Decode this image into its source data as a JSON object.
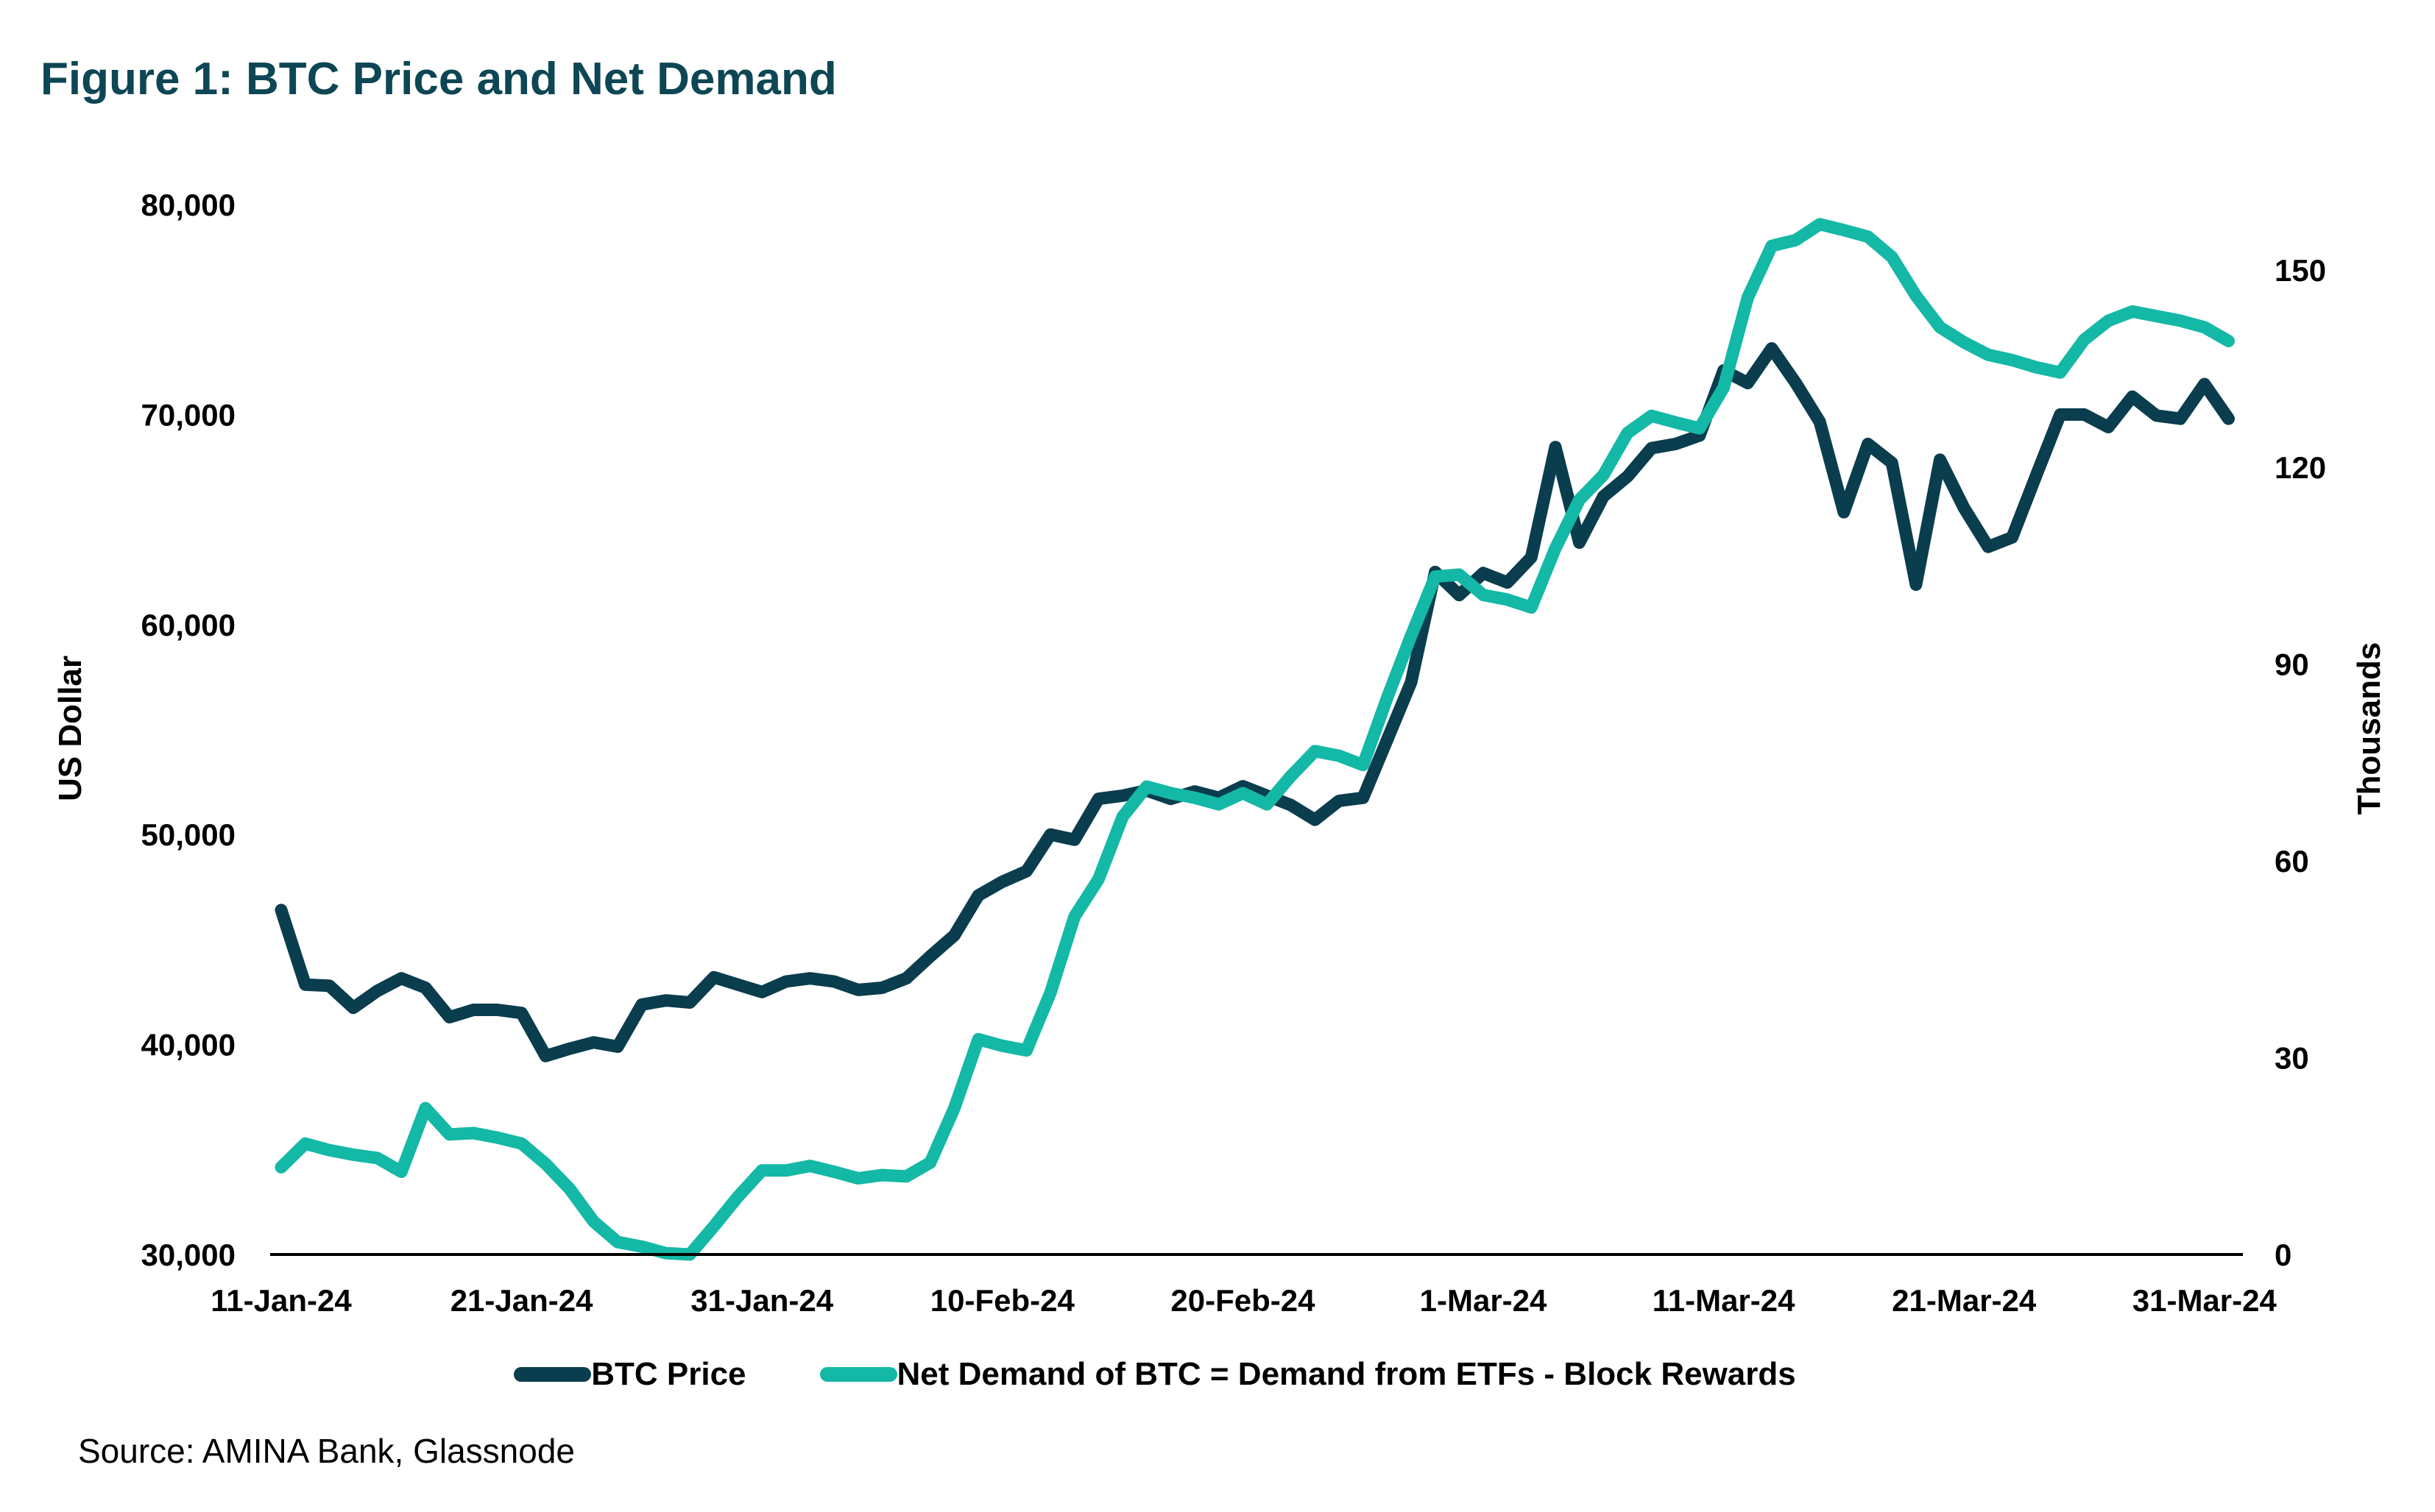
{
  "title": "Figure 1: BTC Price and Net Demand",
  "source": "Source: AMINA Bank, Glassnode",
  "colors": {
    "title": "#0d4654",
    "btc_price": "#0a3d4d",
    "net_demand": "#14b8a6"
  },
  "chart_data": {
    "type": "line",
    "title": "Figure 1: BTC Price and Net Demand",
    "xlabel": "",
    "ylabel": "US Dollar",
    "y2label": "Thousands",
    "x_start": "11-Jan-24",
    "x_end": "1-Apr-24",
    "x_tick_labels": [
      "11-Jan-24",
      "21-Jan-24",
      "31-Jan-24",
      "10-Feb-24",
      "20-Feb-24",
      "1-Mar-24",
      "11-Mar-24",
      "21-Mar-24",
      "31-Mar-24"
    ],
    "x_tick_day_offsets": [
      0,
      10,
      20,
      30,
      40,
      50,
      60,
      70,
      80
    ],
    "ylim": [
      30000,
      80000
    ],
    "y_ticks": [
      30000,
      40000,
      50000,
      60000,
      70000,
      80000
    ],
    "y_tick_labels": [
      "30,000",
      "40,000",
      "50,000",
      "60,000",
      "70,000",
      "80,000"
    ],
    "y2lim": [
      0,
      160
    ],
    "y2_ticks": [
      0,
      30,
      60,
      90,
      120,
      150
    ],
    "y2_tick_labels": [
      "0",
      "30",
      "60",
      "90",
      "120",
      "150"
    ],
    "grid": false,
    "legend_position": "bottom",
    "series": [
      {
        "name": "BTC Price",
        "axis": "left",
        "color": "#0a3d4d",
        "values": [
          46400,
          42850,
          42800,
          41750,
          42550,
          43150,
          42700,
          41300,
          41650,
          41650,
          41500,
          39450,
          39800,
          40100,
          39900,
          41900,
          42100,
          42000,
          43200,
          42850,
          42500,
          43000,
          43150,
          43000,
          42600,
          42700,
          43150,
          44200,
          45200,
          47100,
          47750,
          48250,
          50000,
          49750,
          51700,
          51850,
          52100,
          51700,
          52050,
          51750,
          52300,
          51850,
          51400,
          50700,
          51600,
          51750,
          54500,
          57250,
          62500,
          61400,
          62450,
          62000,
          63200,
          68450,
          63900,
          66100,
          67050,
          68400,
          68600,
          69000,
          72100,
          71500,
          73150,
          71500,
          69650,
          65350,
          68600,
          67700,
          61900,
          67850,
          65550,
          63700,
          64150,
          67100,
          70000,
          70000,
          69400,
          70850,
          69950,
          69800,
          71450,
          69800
        ]
      },
      {
        "name": "Net Demand of BTC = Demand from ETFs - Block Rewards",
        "axis": "right",
        "color": "#14b8a6",
        "values": [
          13.3,
          16.9,
          15.9,
          15.2,
          14.7,
          12.6,
          22.3,
          18.3,
          18.5,
          17.8,
          16.9,
          13.8,
          10.0,
          5.0,
          1.9,
          1.2,
          0.2,
          0.0,
          4.3,
          8.8,
          12.8,
          12.8,
          13.5,
          12.6,
          11.6,
          12.1,
          11.9,
          14.0,
          22.3,
          32.8,
          31.8,
          31.1,
          39.9,
          51.5,
          57.2,
          66.7,
          71.3,
          70.3,
          69.6,
          68.6,
          70.3,
          68.6,
          72.9,
          76.7,
          76.0,
          74.6,
          84.8,
          94.3,
          103.3,
          103.6,
          100.5,
          99.8,
          98.6,
          107.6,
          115.0,
          118.8,
          125.2,
          127.8,
          126.8,
          125.9,
          132.1,
          145.8,
          153.7,
          154.6,
          157.0,
          156.1,
          155.1,
          152.0,
          146.1,
          141.3,
          139.0,
          137.1,
          136.3,
          135.2,
          134.4,
          139.4,
          142.3,
          143.7,
          143.0,
          142.3,
          141.3,
          139.2
        ]
      }
    ]
  },
  "legend": {
    "items": [
      {
        "label": "BTC Price"
      },
      {
        "label": "Net Demand of BTC = Demand from ETFs - Block Rewards"
      }
    ]
  }
}
